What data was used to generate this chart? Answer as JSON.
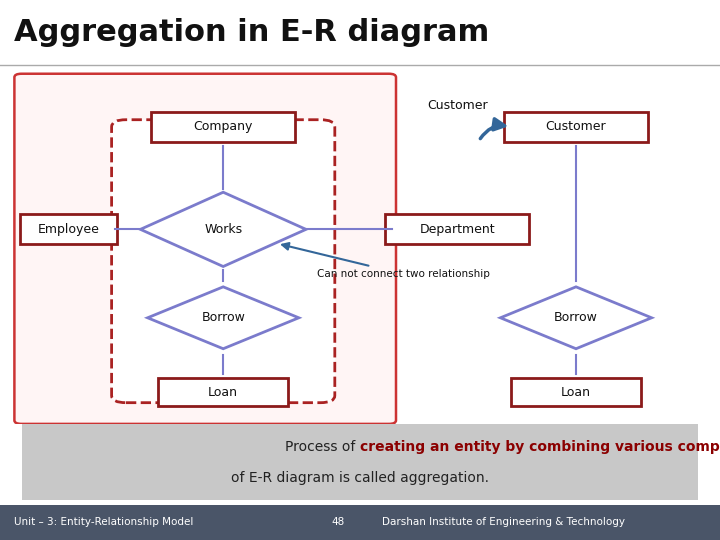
{
  "title": "Aggregation in E-R diagram",
  "title_fontsize": 22,
  "title_fontweight": "bold",
  "bg_color": "#ffffff",
  "footer_bg": "#4a5568",
  "footer_text_left": "Unit – 3: Entity-Relationship Model",
  "footer_text_mid": "48",
  "footer_text_right": "Darshan Institute of Engineering & Technology",
  "footer_color": "#ffffff",
  "box_color_dark": "#8b1a1a",
  "line_color": "#7b7bcc",
  "diamond_color": "#7b7bcc",
  "arrow_color": "#336699",
  "highlight_color": "#8b0000"
}
